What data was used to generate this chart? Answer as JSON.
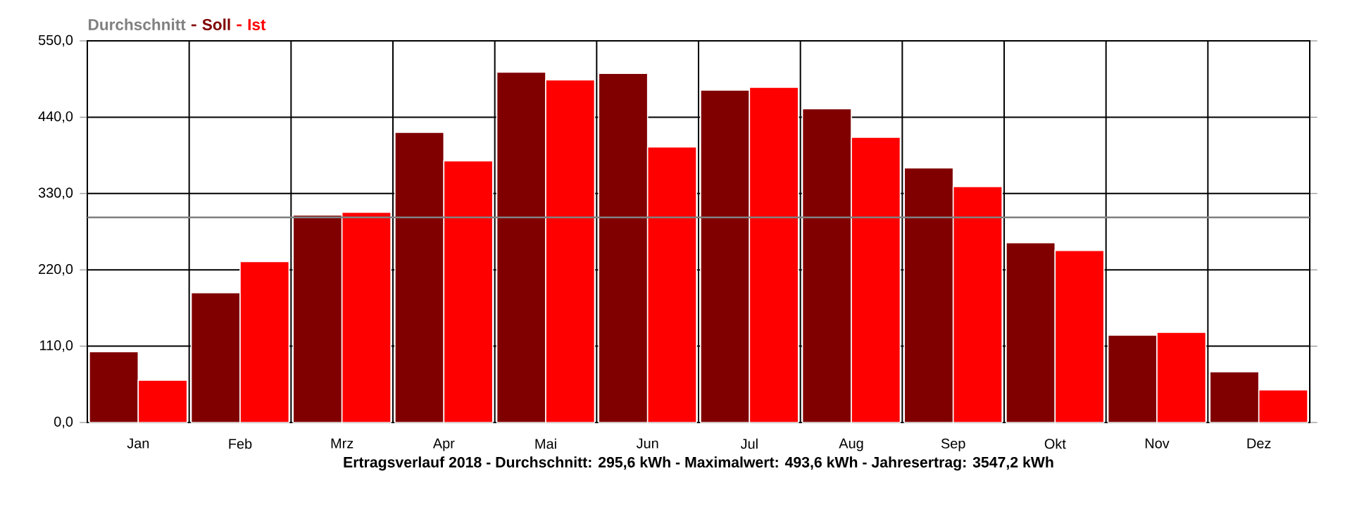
{
  "chart_data": {
    "type": "bar",
    "categories": [
      "Jan",
      "Feb",
      "Mrz",
      "Apr",
      "Mai",
      "Jun",
      "Jul",
      "Aug",
      "Sep",
      "Okt",
      "Nov",
      "Dez"
    ],
    "series": [
      {
        "name": "Soll",
        "color": "#800000",
        "values": [
          102,
          187,
          299,
          418,
          505,
          503,
          479,
          452,
          367,
          259,
          126,
          73
        ]
      },
      {
        "name": "Ist",
        "color": "#ff0000",
        "values": [
          61,
          232,
          303,
          377,
          493.6,
          397,
          483,
          411,
          340,
          248,
          130,
          47
        ]
      }
    ],
    "xlabel": "Ertragsverlauf 2018 - Durchschnitt: 295,6 kWh - Maximalwert: 493,6 kWh - Jahresertrag: 3547,2 kWh",
    "ylim": [
      0,
      550
    ],
    "yticks": [
      {
        "value": 0,
        "label": "0,0"
      },
      {
        "value": 110,
        "label": "110,0"
      },
      {
        "value": 220,
        "label": "220,0"
      },
      {
        "value": 330,
        "label": "330,0"
      },
      {
        "value": 440,
        "label": "440,0"
      },
      {
        "value": 550,
        "label": "550,0"
      }
    ],
    "ref_lines": [
      {
        "axis": "y",
        "value": 295.6,
        "label": "Durchschnitt",
        "color": "#808080"
      }
    ],
    "grid": true,
    "legend": "top left"
  }
}
